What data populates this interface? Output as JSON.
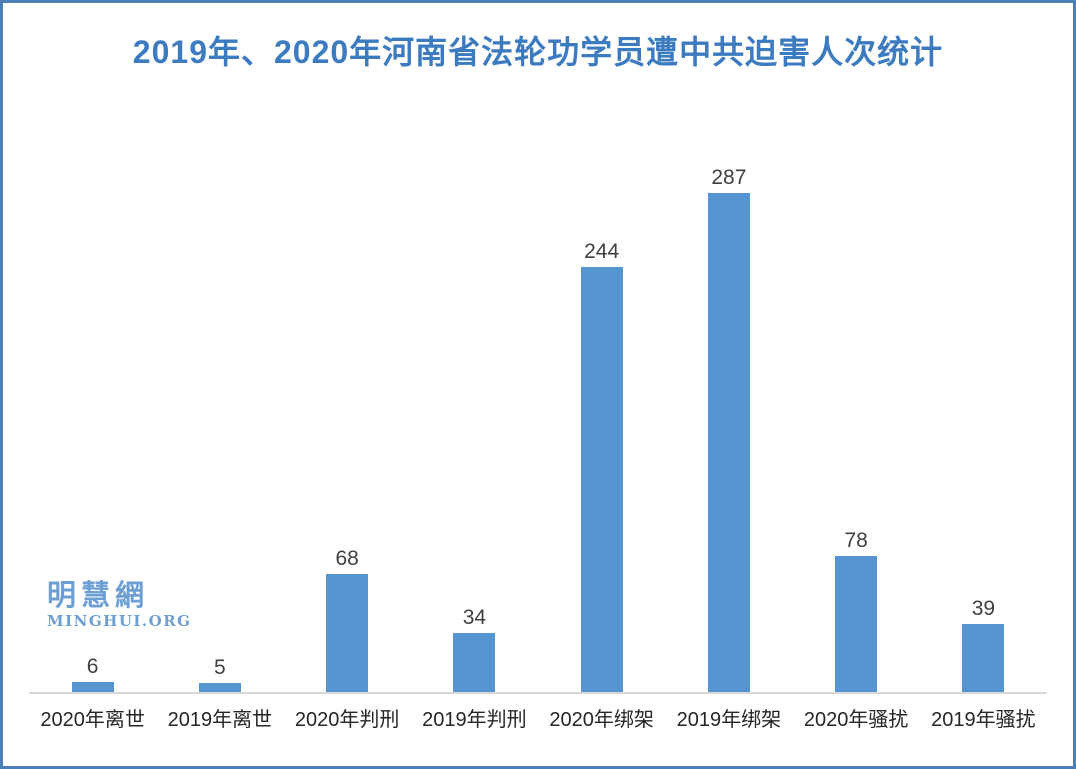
{
  "title": {
    "text": "2019年、2020年河南省法轮功学员遭中共迫害人次统计",
    "color": "#3c7bbf"
  },
  "watermark": {
    "line1": "明慧網",
    "line2": "MINGHUI.ORG",
    "color": "#6e9fd4"
  },
  "frame": {
    "border_color": "#4a80b6",
    "background": "#ffffff"
  },
  "chart_data": {
    "type": "bar",
    "title": "2019年、2020年河南省法轮功学员遭中共迫害人次统计",
    "categories": [
      "2020年离世",
      "2019年离世",
      "2020年判刑",
      "2019年判刑",
      "2020年绑架",
      "2019年绑架",
      "2020年骚扰",
      "2019年骚扰"
    ],
    "values": [
      6,
      5,
      68,
      34,
      244,
      287,
      78,
      39
    ],
    "xlabel": "",
    "ylabel": "",
    "ylim": [
      0,
      300
    ],
    "grid": false,
    "legend": "none",
    "y_axis_visible": false,
    "value_labels_shown": true,
    "bar_color": "#5596d0",
    "value_label_color": "#404040",
    "axis_label_color": "#262626",
    "axis_line_color": "#d9d9d9"
  }
}
